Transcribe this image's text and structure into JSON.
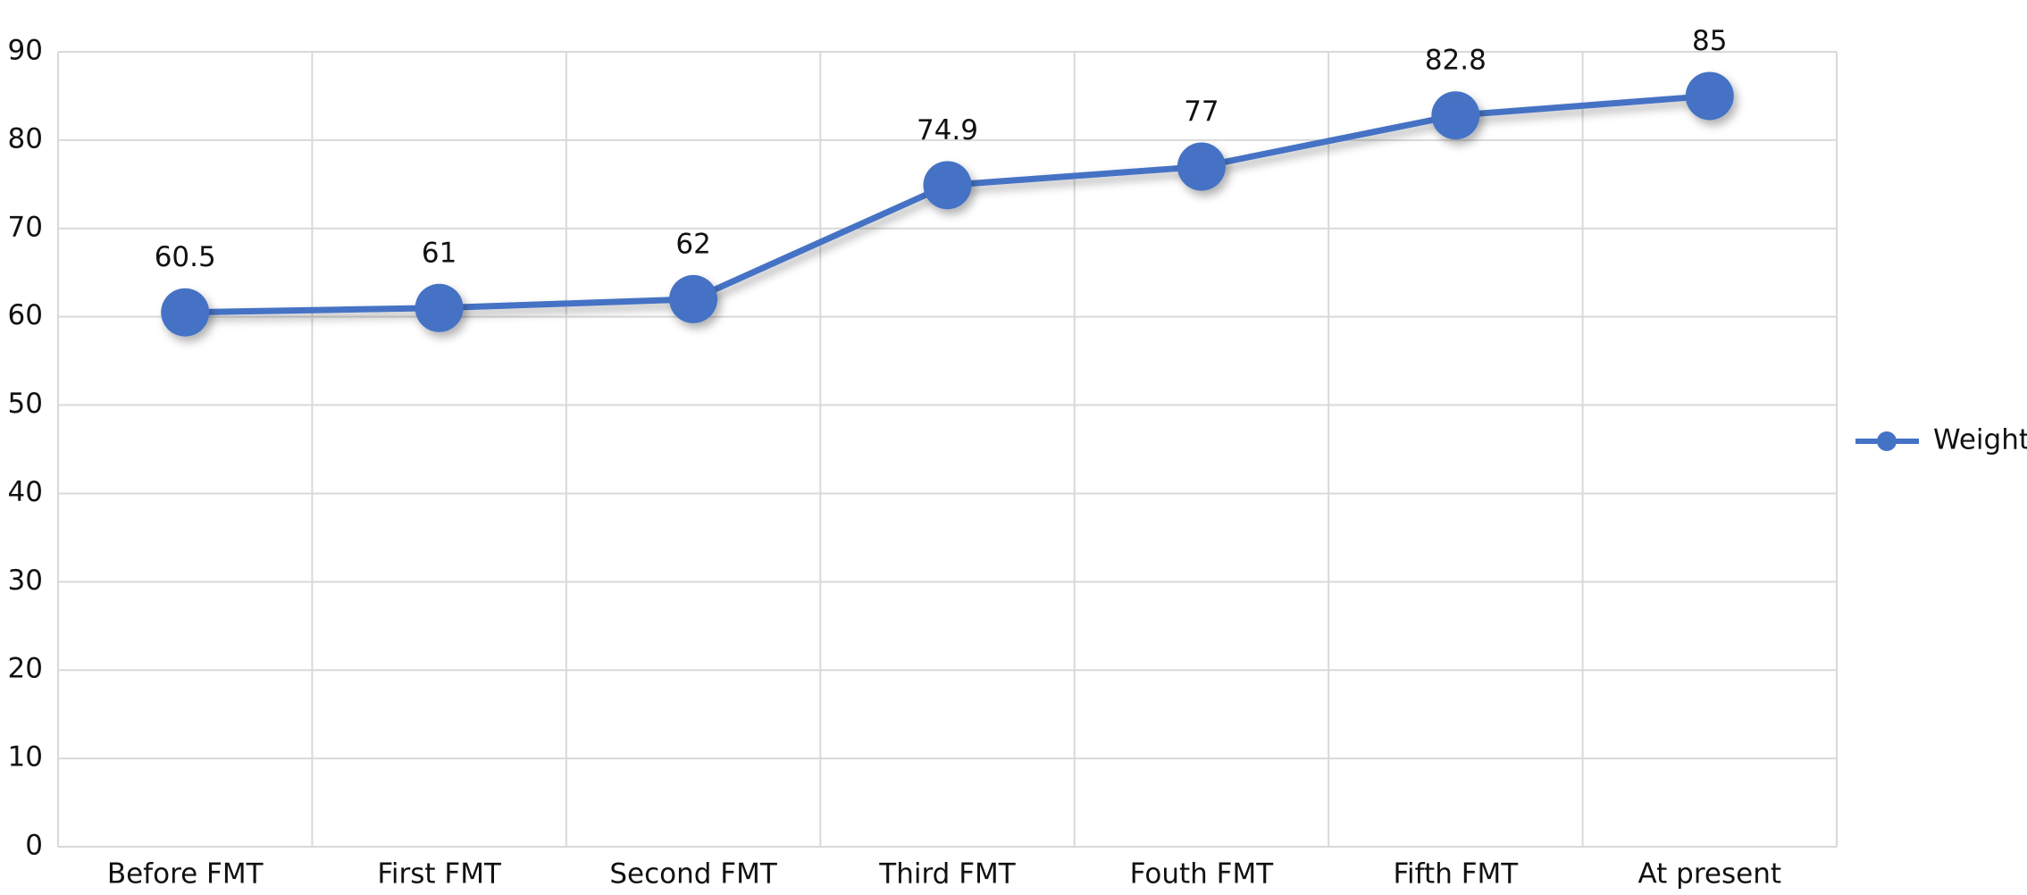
{
  "chart_data": {
    "type": "line",
    "categories": [
      "Before FMT",
      "First FMT",
      "Second FMT",
      "Third FMT",
      "Fouth FMT",
      "Fifth FMT",
      "At present"
    ],
    "series": [
      {
        "name": "Weight",
        "color": "#4472c4",
        "values": [
          60.5,
          61,
          62,
          74.9,
          77,
          82.8,
          85
        ]
      }
    ],
    "ylim": [
      0,
      90
    ],
    "yticks": [
      0,
      10,
      20,
      30,
      40,
      50,
      60,
      70,
      80,
      90
    ],
    "grid": true,
    "legend": "right",
    "data_labels": true
  }
}
